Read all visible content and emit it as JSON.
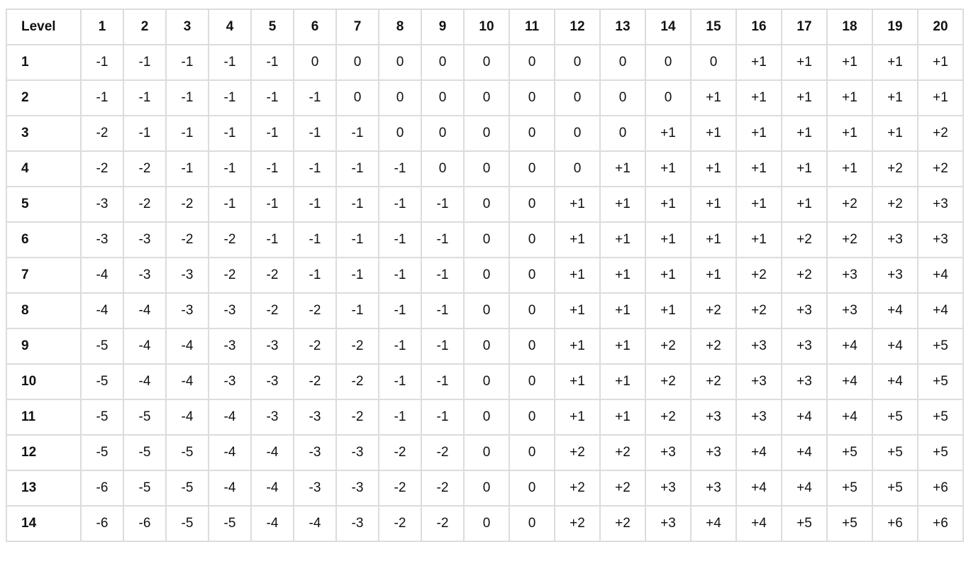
{
  "table": {
    "headers": [
      "Level",
      "1",
      "2",
      "3",
      "4",
      "5",
      "6",
      "7",
      "8",
      "9",
      "10",
      "11",
      "12",
      "13",
      "14",
      "15",
      "16",
      "17",
      "18",
      "19",
      "20"
    ],
    "rows": [
      [
        "1",
        "-1",
        "-1",
        "-1",
        "-1",
        "-1",
        "0",
        "0",
        "0",
        "0",
        "0",
        "0",
        "0",
        "0",
        "0",
        "0",
        "+1",
        "+1",
        "+1",
        "+1",
        "+1"
      ],
      [
        "2",
        "-1",
        "-1",
        "-1",
        "-1",
        "-1",
        "-1",
        "0",
        "0",
        "0",
        "0",
        "0",
        "0",
        "0",
        "0",
        "+1",
        "+1",
        "+1",
        "+1",
        "+1",
        "+1"
      ],
      [
        "3",
        "-2",
        "-1",
        "-1",
        "-1",
        "-1",
        "-1",
        "-1",
        "0",
        "0",
        "0",
        "0",
        "0",
        "0",
        "+1",
        "+1",
        "+1",
        "+1",
        "+1",
        "+1",
        "+2"
      ],
      [
        "4",
        "-2",
        "-2",
        "-1",
        "-1",
        "-1",
        "-1",
        "-1",
        "-1",
        "0",
        "0",
        "0",
        "0",
        "+1",
        "+1",
        "+1",
        "+1",
        "+1",
        "+1",
        "+2",
        "+2"
      ],
      [
        "5",
        "-3",
        "-2",
        "-2",
        "-1",
        "-1",
        "-1",
        "-1",
        "-1",
        "-1",
        "0",
        "0",
        "+1",
        "+1",
        "+1",
        "+1",
        "+1",
        "+1",
        "+2",
        "+2",
        "+3"
      ],
      [
        "6",
        "-3",
        "-3",
        "-2",
        "-2",
        "-1",
        "-1",
        "-1",
        "-1",
        "-1",
        "0",
        "0",
        "+1",
        "+1",
        "+1",
        "+1",
        "+1",
        "+2",
        "+2",
        "+3",
        "+3"
      ],
      [
        "7",
        "-4",
        "-3",
        "-3",
        "-2",
        "-2",
        "-1",
        "-1",
        "-1",
        "-1",
        "0",
        "0",
        "+1",
        "+1",
        "+1",
        "+1",
        "+2",
        "+2",
        "+3",
        "+3",
        "+4"
      ],
      [
        "8",
        "-4",
        "-4",
        "-3",
        "-3",
        "-2",
        "-2",
        "-1",
        "-1",
        "-1",
        "0",
        "0",
        "+1",
        "+1",
        "+1",
        "+2",
        "+2",
        "+3",
        "+3",
        "+4",
        "+4"
      ],
      [
        "9",
        "-5",
        "-4",
        "-4",
        "-3",
        "-3",
        "-2",
        "-2",
        "-1",
        "-1",
        "0",
        "0",
        "+1",
        "+1",
        "+2",
        "+2",
        "+3",
        "+3",
        "+4",
        "+4",
        "+5"
      ],
      [
        "10",
        "-5",
        "-4",
        "-4",
        "-3",
        "-3",
        "-2",
        "-2",
        "-1",
        "-1",
        "0",
        "0",
        "+1",
        "+1",
        "+2",
        "+2",
        "+3",
        "+3",
        "+4",
        "+4",
        "+5"
      ],
      [
        "11",
        "-5",
        "-5",
        "-4",
        "-4",
        "-3",
        "-3",
        "-2",
        "-1",
        "-1",
        "0",
        "0",
        "+1",
        "+1",
        "+2",
        "+3",
        "+3",
        "+4",
        "+4",
        "+5",
        "+5"
      ],
      [
        "12",
        "-5",
        "-5",
        "-5",
        "-4",
        "-4",
        "-3",
        "-3",
        "-2",
        "-2",
        "0",
        "0",
        "+2",
        "+2",
        "+3",
        "+3",
        "+4",
        "+4",
        "+5",
        "+5",
        "+5"
      ],
      [
        "13",
        "-6",
        "-5",
        "-5",
        "-4",
        "-4",
        "-3",
        "-3",
        "-2",
        "-2",
        "0",
        "0",
        "+2",
        "+2",
        "+3",
        "+3",
        "+4",
        "+4",
        "+5",
        "+5",
        "+6"
      ],
      [
        "14",
        "-6",
        "-6",
        "-5",
        "-5",
        "-4",
        "-4",
        "-3",
        "-2",
        "-2",
        "0",
        "0",
        "+2",
        "+2",
        "+3",
        "+4",
        "+4",
        "+5",
        "+5",
        "+6",
        "+6"
      ]
    ]
  }
}
